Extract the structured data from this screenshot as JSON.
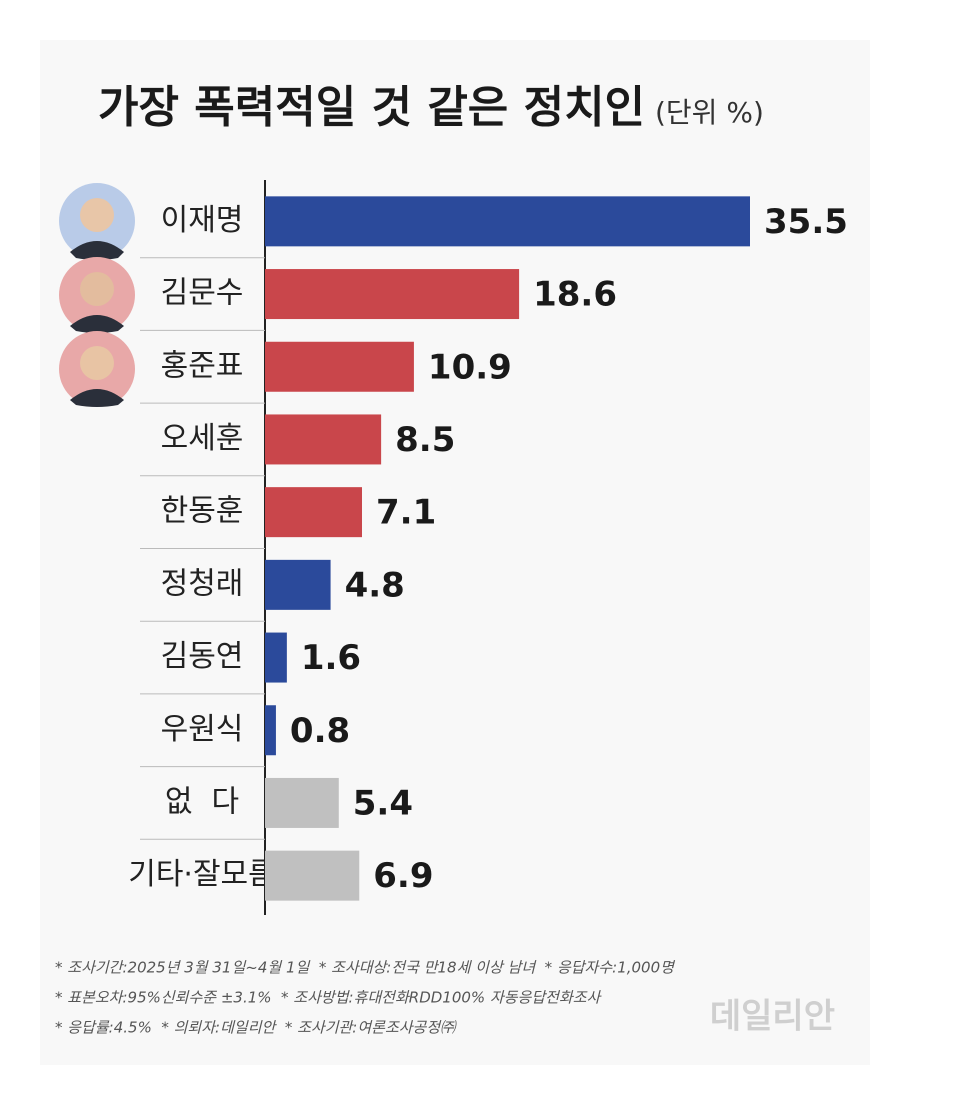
{
  "chart_data": {
    "type": "hbar",
    "title": "가장 폭력적일 것 같은 정치인",
    "unit": "(단위 %)",
    "categories": [
      "이재명",
      "김문수",
      "홍준표",
      "오세훈",
      "한동훈",
      "정청래",
      "김동연",
      "우원식",
      "없  다",
      "기타·잘모름"
    ],
    "values": [
      35.5,
      18.6,
      10.9,
      8.5,
      7.1,
      4.8,
      1.6,
      0.8,
      5.4,
      6.9
    ],
    "colors": [
      "#2b4a9b",
      "#c9464b",
      "#c9464b",
      "#c9464b",
      "#c9464b",
      "#2b4a9b",
      "#2b4a9b",
      "#2b4a9b",
      "#c0c0c0",
      "#c0c0c0"
    ],
    "notes": [
      "* 조사기간:2025년 3월 31일~4월 1일  * 조사대상:전국 만18세 이상 남녀  * 응답자수:1,000명",
      "* 표본오차:95%신뢰수준 ±3.1%  * 조사방법:휴대전화RDD100% 자동응답전화조사",
      "* 응답률:4.5%  * 의뢰자:데일리안  * 조사기관:여론조사공정㈜"
    ],
    "source": "데일리안"
  }
}
